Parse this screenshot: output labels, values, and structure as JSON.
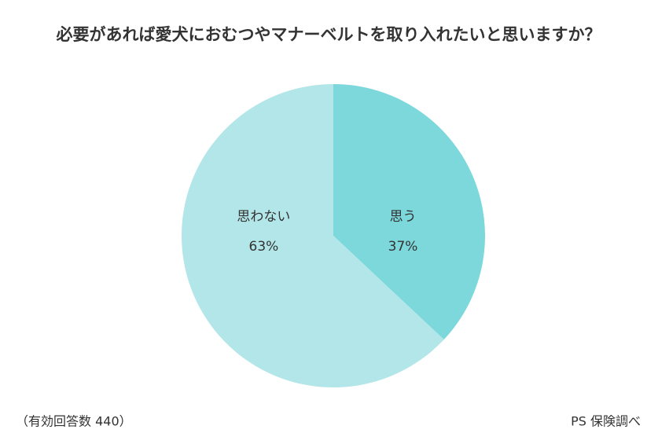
{
  "chart_data": {
    "type": "pie",
    "title": "必要があれば愛犬におむつやマナーベルトを取り入れたいと思いますか？",
    "categories": [
      "思う",
      "思わない"
    ],
    "values": [
      37,
      63
    ],
    "value_labels": [
      "37%",
      "63%"
    ],
    "colors": [
      "#7dd8dc",
      "#b3e6e8"
    ],
    "note": "（有効回答数 440）",
    "source": "PS 保険調べ"
  }
}
